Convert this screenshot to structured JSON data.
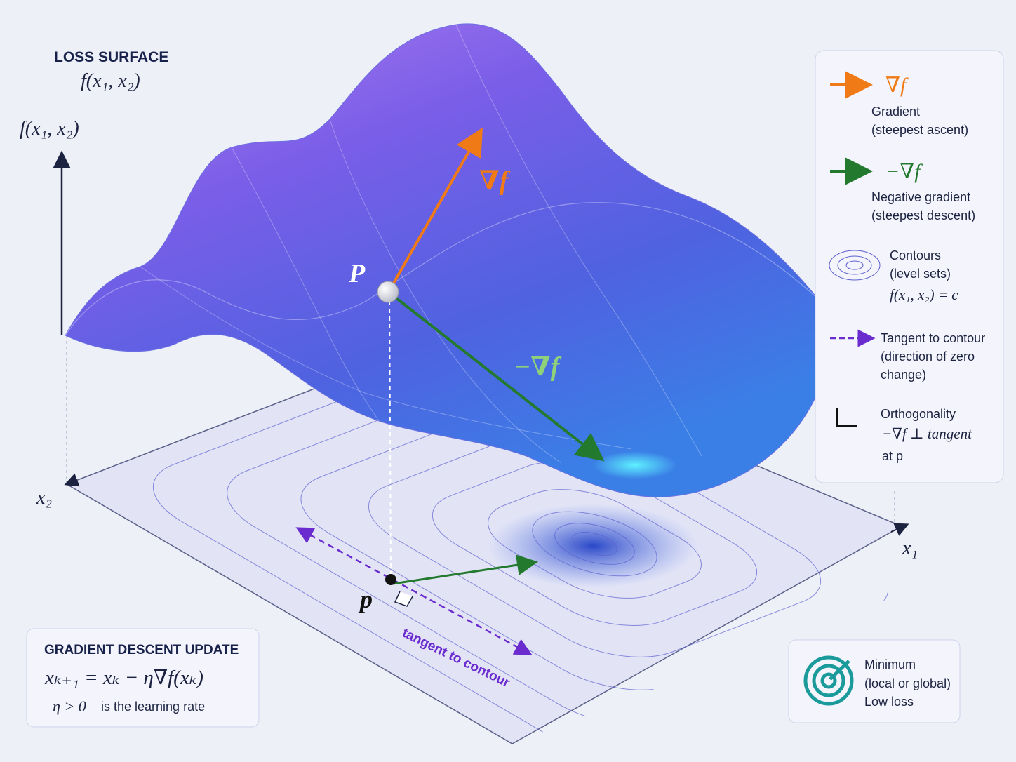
{
  "title": {
    "heading": "LOSS SURFACE",
    "formula": "f(x₁, x₂)"
  },
  "axes": {
    "vertical": "f(x₁, x₂)",
    "x1": "x₁",
    "x2": "x₂"
  },
  "surface_labels": {
    "point": "P",
    "gradient": "∇f",
    "negative_gradient": "−∇f"
  },
  "plane_labels": {
    "point": "p",
    "tangent": "tangent to contour"
  },
  "legend": {
    "items": [
      {
        "symbol": "∇f",
        "lines": [
          "Gradient",
          "(steepest ascent)"
        ]
      },
      {
        "symbol": "−∇f",
        "lines": [
          "Negative gradient",
          "(steepest descent)"
        ]
      },
      {
        "lines": [
          "Contours",
          "(level sets)"
        ],
        "formula": "f(x₁, x₂) = c"
      },
      {
        "lines": [
          "Tangent to contour",
          "(direction of zero",
          "change)"
        ]
      },
      {
        "lines": [
          "Orthogonality",
          "−∇f ⊥ tangent",
          "at p"
        ]
      }
    ]
  },
  "update_box": {
    "title": "GRADIENT DESCENT UPDATE",
    "formula": "xₖ₊₁ = xₖ − η∇f(xₖ)",
    "note_math": "η > 0",
    "note_text": "is the learning rate"
  },
  "minimum_box": {
    "lines": [
      "Minimum",
      "(local or global)",
      "Low loss"
    ]
  }
}
